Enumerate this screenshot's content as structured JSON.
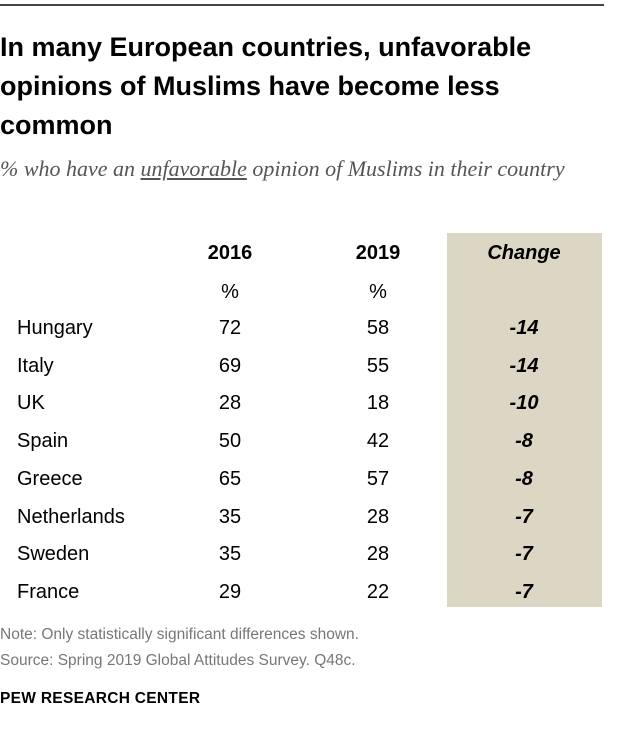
{
  "header": {
    "title": "In many European countries, unfavorable opinions of Muslims have become less common",
    "subtitle": [
      "% who have an ",
      "unfavorable",
      " opinion of Muslims in their country"
    ]
  },
  "table": {
    "columns": [
      "2016",
      "2019",
      "Change"
    ],
    "units": [
      "%",
      "%"
    ],
    "rows": [
      [
        "Hungary",
        72,
        58,
        -14
      ],
      [
        "Italy",
        69,
        55,
        -14
      ],
      [
        "UK",
        28,
        18,
        -10
      ],
      [
        "Spain",
        50,
        42,
        -8
      ],
      [
        "Greece",
        65,
        57,
        -8
      ],
      [
        "Netherlands",
        35,
        28,
        -7
      ],
      [
        "Sweden",
        35,
        28,
        -7
      ],
      [
        "France",
        29,
        22,
        -7
      ]
    ]
  },
  "footer": {
    "note": "Note: Only statistically significant differences shown.",
    "source": "Source: Spring 2019 Global Attitudes Survey. Q48c.",
    "credit": "PEW RESEARCH CENTER"
  }
}
